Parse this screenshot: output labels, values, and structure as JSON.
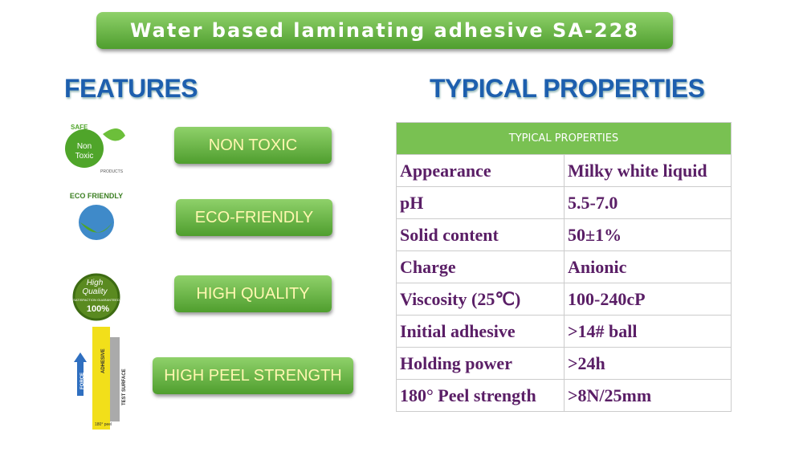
{
  "header": {
    "title": "Water based laminating adhesive SA-228"
  },
  "features": {
    "title": "FEATURES",
    "items": [
      {
        "label": "NON TOXIC",
        "icon_texts": [
          "SAFE",
          "Non",
          "Toxic",
          "PRODUCTS"
        ]
      },
      {
        "label": "ECO-FRIENDLY",
        "icon_texts": [
          "ECO FRIENDLY"
        ]
      },
      {
        "label": "HIGH QUALITY",
        "icon_texts": [
          "High",
          "Quality",
          "SATISFACTION GUARANTEED",
          "100%"
        ]
      },
      {
        "label": "HIGH PEEL STRENGTH",
        "icon_texts": [
          "FORCE",
          "ADHESIVE",
          "TEST SURFACE",
          "180° peel"
        ]
      }
    ]
  },
  "properties": {
    "title": "TYPICAL PROPERTIES",
    "table": {
      "header": "TYPICAL PROPERTIES",
      "rows": [
        [
          "Appearance",
          "Milky white liquid"
        ],
        [
          "pH",
          "5.5-7.0"
        ],
        [
          "Solid content",
          "50±1%"
        ],
        [
          "Charge",
          "Anionic"
        ],
        [
          "Viscosity (25℃)",
          "100-240cP"
        ],
        [
          "Initial adhesive",
          ">14# ball"
        ],
        [
          "Holding power",
          ">24h"
        ],
        [
          "180° Peel strength",
          ">8N/25mm"
        ]
      ]
    }
  }
}
